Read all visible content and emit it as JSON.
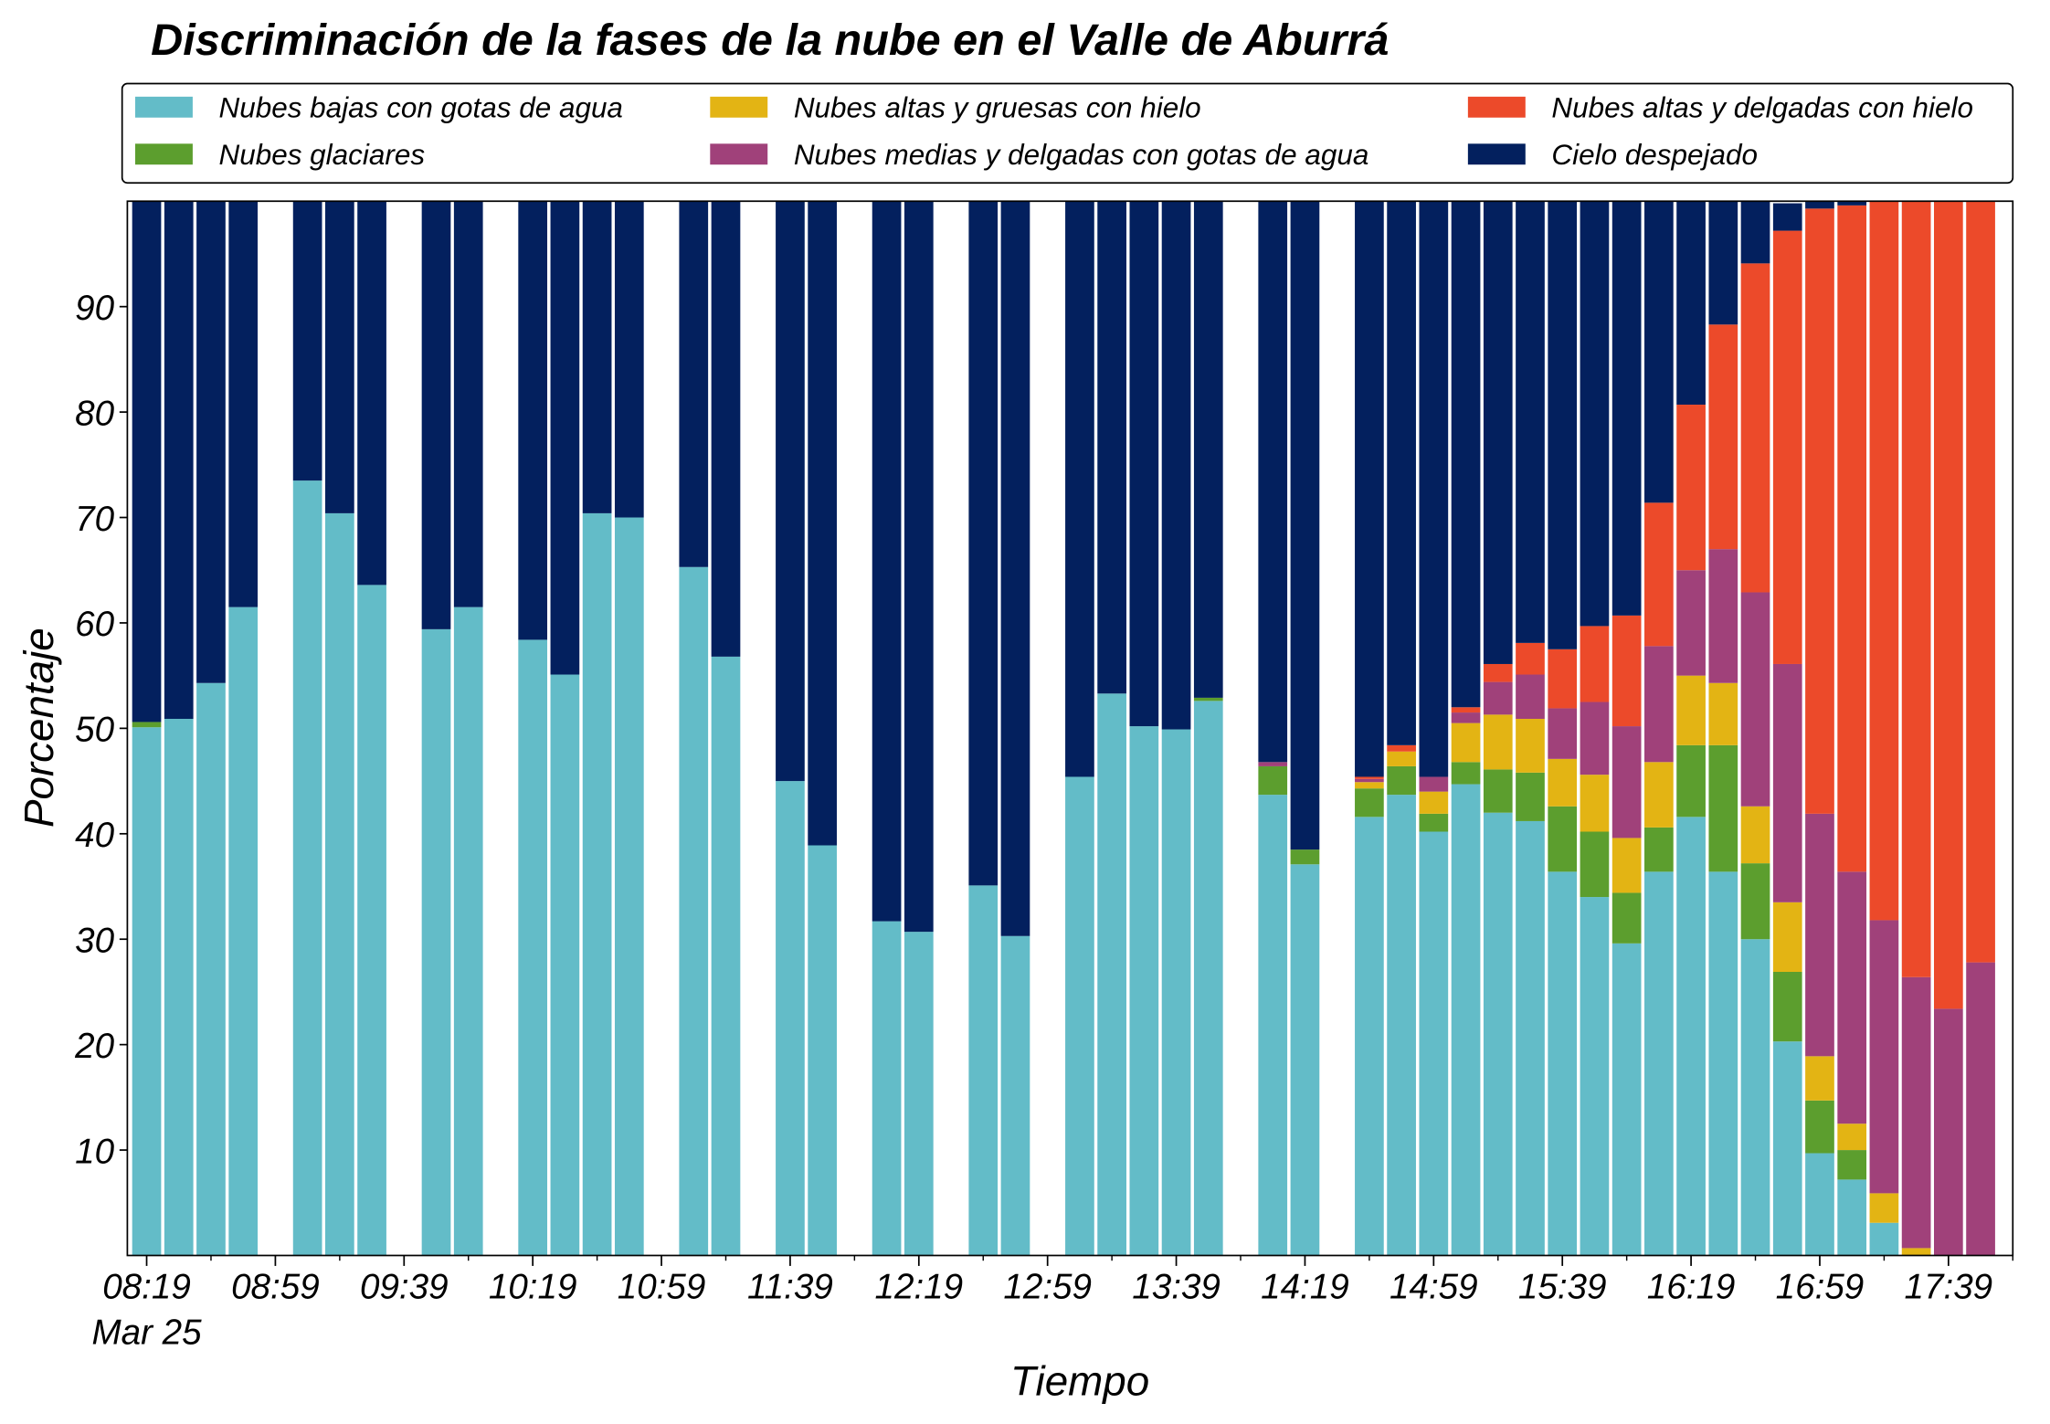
{
  "chart_data": {
    "type": "stacked_bar",
    "title": "Discriminación de la fases de la nube en el Valle de Aburrá",
    "xlabel": "Tiempo",
    "ylabel": "Porcentaje",
    "date_label": "Mar 25",
    "x": [
      "08:19",
      "08:29",
      "08:39",
      "08:49",
      "09:09",
      "09:19",
      "09:29",
      "09:49",
      "09:59",
      "10:19",
      "10:29",
      "10:39",
      "10:49",
      "11:09",
      "11:19",
      "11:39",
      "11:49",
      "12:09",
      "12:19",
      "12:39",
      "12:49",
      "13:09",
      "13:19",
      "13:29",
      "13:39",
      "13:49",
      "14:09",
      "14:19",
      "14:39",
      "14:49",
      "14:59",
      "15:09",
      "15:19",
      "15:29",
      "15:39",
      "15:49",
      "15:59",
      "16:09",
      "16:19",
      "16:29",
      "16:39",
      "16:49",
      "16:59",
      "17:09",
      "17:19",
      "17:29",
      "17:39",
      "17:49"
    ],
    "series": [
      {
        "name": "Nubes bajas con gotas de agua",
        "color": "#63bcc8",
        "values": [
          50.1,
          50.9,
          54.3,
          61.5,
          73.5,
          70.4,
          63.6,
          59.4,
          61.5,
          58.4,
          55.1,
          70.4,
          70.0,
          65.3,
          56.8,
          45.0,
          38.9,
          31.7,
          30.7,
          35.1,
          30.3,
          45.4,
          53.3,
          50.2,
          49.9,
          52.6,
          43.7,
          37.1,
          41.6,
          43.7,
          40.2,
          44.7,
          42.0,
          41.2,
          36.4,
          34.0,
          29.6,
          36.4,
          41.6,
          36.4,
          30.0,
          20.3,
          9.7,
          7.2,
          3.1,
          0,
          0,
          0
        ]
      },
      {
        "name": "Nubes glaciares",
        "color": "#5c9e2e",
        "values": [
          0.5,
          0,
          0,
          0,
          0,
          0,
          0,
          0,
          0,
          0,
          0,
          0,
          0,
          0,
          0,
          0,
          0,
          0,
          0,
          0,
          0,
          0,
          0,
          0,
          0,
          0.3,
          2.7,
          1.4,
          2.7,
          2.7,
          1.7,
          2.1,
          4.1,
          4.6,
          6.2,
          6.2,
          4.8,
          4.2,
          6.8,
          12.0,
          7.2,
          6.6,
          5.0,
          2.8,
          0,
          0,
          0,
          0
        ]
      },
      {
        "name": "Nubes altas y gruesas con hielo",
        "color": "#e3b414",
        "values": [
          0,
          0,
          0,
          0,
          0,
          0,
          0,
          0,
          0,
          0,
          0,
          0,
          0,
          0,
          0,
          0,
          0,
          0,
          0,
          0,
          0,
          0,
          0,
          0,
          0,
          0,
          0,
          0,
          0.6,
          1.4,
          2.1,
          3.7,
          5.2,
          5.1,
          4.5,
          5.4,
          5.2,
          6.2,
          6.6,
          5.9,
          5.4,
          6.6,
          4.2,
          2.5,
          2.8,
          0.7,
          0,
          0
        ]
      },
      {
        "name": "Nubes medias y delgadas con gotas de agua",
        "color": "#a0417a",
        "values": [
          0,
          0,
          0,
          0,
          0,
          0,
          0,
          0,
          0,
          0,
          0,
          0,
          0,
          0,
          0,
          0,
          0,
          0,
          0,
          0,
          0,
          0,
          0,
          0,
          0,
          0,
          0.4,
          0,
          0.3,
          0,
          1.4,
          1.0,
          3.1,
          4.2,
          4.8,
          6.9,
          10.6,
          11.0,
          10.0,
          12.7,
          20.3,
          22.6,
          23.0,
          23.9,
          25.9,
          25.7,
          23.4,
          27.8
        ]
      },
      {
        "name": "Nubes altas y delgadas con hielo",
        "color": "#ec4a2a",
        "values": [
          0,
          0,
          0,
          0,
          0,
          0,
          0,
          0,
          0,
          0,
          0,
          0,
          0,
          0,
          0,
          0,
          0,
          0,
          0,
          0,
          0,
          0,
          0,
          0,
          0,
          0,
          0,
          0,
          0.2,
          0.6,
          0,
          0.5,
          1.7,
          3.0,
          5.6,
          7.2,
          10.5,
          13.6,
          15.7,
          21.3,
          31.2,
          41.1,
          57.4,
          63.2,
          68.2,
          73.6,
          76.6,
          72.2
        ]
      },
      {
        "name": "Cielo despejado",
        "color": "#03205e",
        "values": [
          49.4,
          49.1,
          45.7,
          38.5,
          26.5,
          29.6,
          36.4,
          40.6,
          38.5,
          41.6,
          44.9,
          29.6,
          30.0,
          34.7,
          43.2,
          55.0,
          61.1,
          68.3,
          69.3,
          64.9,
          69.7,
          54.6,
          46.7,
          49.8,
          50.1,
          47.1,
          53.2,
          61.5,
          54.6,
          51.6,
          54.6,
          48.0,
          43.9,
          41.9,
          42.5,
          40.3,
          39.3,
          28.6,
          19.3,
          11.7,
          5.9,
          2.6,
          0.7,
          0.4,
          0,
          0,
          0,
          0
        ]
      }
    ],
    "xlim": [
      "08:13",
      "17:59"
    ],
    "xticks": [
      "08:19",
      "08:59",
      "09:39",
      "10:19",
      "10:59",
      "11:39",
      "12:19",
      "12:59",
      "13:39",
      "14:19",
      "14:59",
      "15:39",
      "16:19",
      "16:59",
      "17:39"
    ],
    "ylim": [
      0,
      100
    ],
    "yticks": [
      10,
      20,
      30,
      40,
      50,
      60,
      70,
      80,
      90
    ],
    "legend": "top",
    "legend_columns": 3
  }
}
